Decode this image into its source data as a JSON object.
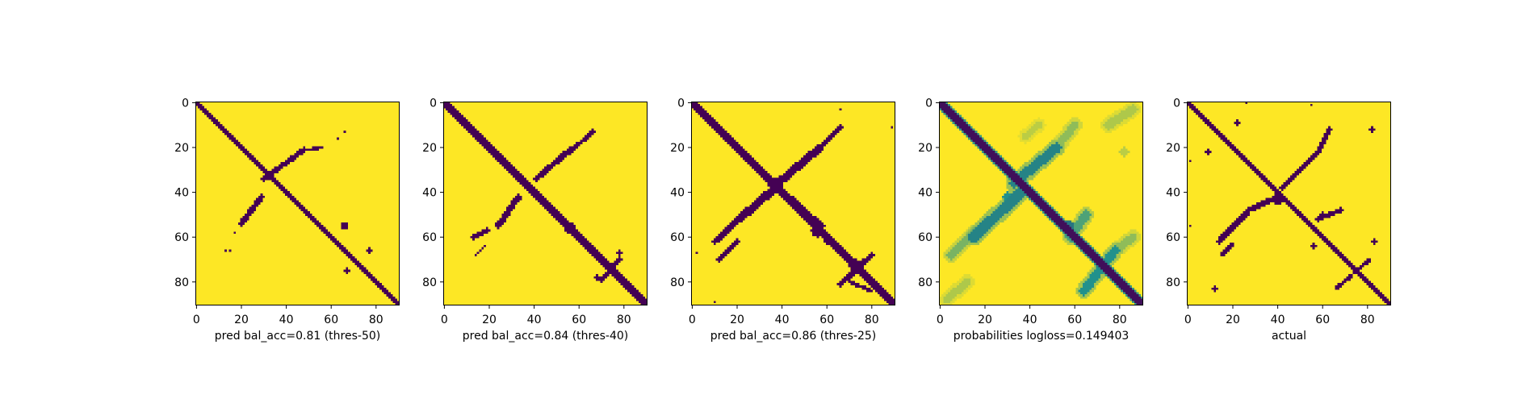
{
  "chart_data": [
    {
      "type": "heatmap",
      "matrix_size": 91,
      "colormap": "viridis",
      "colors": {
        "low": "#440154",
        "mid": "#21918c",
        "high": "#fde725"
      },
      "xlabel": "pred bal_acc=0.81 (thres-50)",
      "x_ticks": [
        0,
        20,
        40,
        60,
        80
      ],
      "y_ticks": [
        0,
        20,
        40,
        60,
        80
      ],
      "xlim": [
        0,
        91
      ],
      "ylim": [
        91,
        0
      ],
      "binary": true,
      "diagonal_width": 2.2,
      "cross_features": [
        {
          "x1": 30,
          "y1": 34,
          "x2": 48,
          "y2": 21,
          "width": 1.2
        },
        {
          "x1": 20,
          "y1": 54,
          "x2": 29,
          "y2": 42,
          "width": 1.3
        },
        {
          "x1": 50,
          "y1": 21,
          "x2": 56,
          "y2": 20,
          "width": 0.8
        }
      ],
      "blobs": [
        {
          "x": 66,
          "y": 55,
          "r": 1.5
        },
        {
          "x": 77,
          "y": 66,
          "r": 1.2
        },
        {
          "x": 67,
          "y": 75,
          "r": 1.0
        },
        {
          "x": 17,
          "y": 58,
          "r": 0.8
        },
        {
          "x": 15,
          "y": 66,
          "r": 0.8
        },
        {
          "x": 13,
          "y": 66,
          "r": 0.6
        },
        {
          "x": 63,
          "y": 16,
          "r": 0.6
        },
        {
          "x": 66,
          "y": 13,
          "r": 0.6
        }
      ]
    },
    {
      "type": "heatmap",
      "matrix_size": 91,
      "colormap": "viridis",
      "colors": {
        "low": "#440154",
        "mid": "#21918c",
        "high": "#fde725"
      },
      "xlabel": "pred bal_acc=0.84 (thres-40)",
      "x_ticks": [
        0,
        20,
        40,
        60,
        80
      ],
      "y_ticks": [
        0,
        20,
        40,
        60,
        80
      ],
      "xlim": [
        0,
        91
      ],
      "ylim": [
        91,
        0
      ],
      "binary": true,
      "diagonal_width": 2.4,
      "cross_features": [
        {
          "x1": 41,
          "y1": 34,
          "x2": 56,
          "y2": 21,
          "width": 1.3
        },
        {
          "x1": 56,
          "y1": 22,
          "x2": 66,
          "y2": 13,
          "width": 1.0
        },
        {
          "x1": 24,
          "y1": 55,
          "x2": 33,
          "y2": 42,
          "width": 1.4
        },
        {
          "x1": 13,
          "y1": 60,
          "x2": 19,
          "y2": 57,
          "width": 1.0
        },
        {
          "x1": 14,
          "y1": 68,
          "x2": 18,
          "y2": 64,
          "width": 0.7
        },
        {
          "x1": 70,
          "y1": 79,
          "x2": 78,
          "y2": 70,
          "width": 1.0
        }
      ],
      "blobs": [
        {
          "x": 56,
          "y": 56,
          "r": 2.5
        },
        {
          "x": 78,
          "y": 67,
          "r": 1.0
        },
        {
          "x": 68,
          "y": 78,
          "r": 1.2
        },
        {
          "x": 32,
          "y": 44,
          "r": 1.0
        }
      ]
    },
    {
      "type": "heatmap",
      "matrix_size": 91,
      "colormap": "viridis",
      "colors": {
        "low": "#440154",
        "mid": "#21918c",
        "high": "#fde725"
      },
      "xlabel": "pred bal_acc=0.86 (thres-25)",
      "x_ticks": [
        0,
        20,
        40,
        60,
        80
      ],
      "y_ticks": [
        0,
        20,
        40,
        60,
        80
      ],
      "xlim": [
        0,
        91
      ],
      "ylim": [
        91,
        0
      ],
      "binary": true,
      "diagonal_width": 2.6,
      "cross_features": [
        {
          "x1": 37,
          "y1": 37,
          "x2": 57,
          "y2": 20,
          "width": 1.8
        },
        {
          "x1": 57,
          "y1": 20,
          "x2": 66,
          "y2": 11,
          "width": 1.2
        },
        {
          "x1": 21,
          "y1": 52,
          "x2": 37,
          "y2": 38,
          "width": 1.8
        },
        {
          "x1": 10,
          "y1": 62,
          "x2": 21,
          "y2": 52,
          "width": 1.4
        },
        {
          "x1": 12,
          "y1": 70,
          "x2": 20,
          "y2": 62,
          "width": 1.0
        },
        {
          "x1": 38,
          "y1": 37,
          "x2": 58,
          "y2": 55,
          "width": 1.0
        },
        {
          "x1": 55,
          "y1": 52,
          "x2": 60,
          "y2": 62,
          "width": 1.3
        },
        {
          "x1": 66,
          "y1": 81,
          "x2": 80,
          "y2": 68,
          "width": 1.3
        },
        {
          "x1": 70,
          "y1": 80,
          "x2": 80,
          "y2": 84,
          "width": 0.9
        }
      ],
      "blobs": [
        {
          "x": 37,
          "y": 37,
          "r": 3.0
        },
        {
          "x": 56,
          "y": 57,
          "r": 3.0
        },
        {
          "x": 73,
          "y": 73,
          "r": 3.0
        },
        {
          "x": 66,
          "y": 3,
          "r": 0.5
        },
        {
          "x": 89,
          "y": 11,
          "r": 0.5
        },
        {
          "x": 2,
          "y": 67,
          "r": 0.5
        },
        {
          "x": 10,
          "y": 89,
          "r": 0.5
        }
      ]
    },
    {
      "type": "heatmap",
      "matrix_size": 91,
      "colormap": "viridis",
      "colors": {
        "low": "#440154",
        "mid": "#21918c",
        "high": "#fde725"
      },
      "xlabel": "probabilities logloss=0.149403",
      "x_ticks": [
        0,
        20,
        40,
        60,
        80
      ],
      "y_ticks": [
        0,
        20,
        40,
        60,
        80
      ],
      "xlim": [
        0,
        91
      ],
      "ylim": [
        91,
        0
      ],
      "binary": false,
      "diagonal_width": 2.4,
      "cross_features": [
        {
          "x1": 33,
          "y1": 36,
          "x2": 52,
          "y2": 20,
          "width": 2.2,
          "value": 0.45
        },
        {
          "x1": 52,
          "y1": 20,
          "x2": 60,
          "y2": 10,
          "width": 1.8,
          "value": 0.75
        },
        {
          "x1": 15,
          "y1": 60,
          "x2": 36,
          "y2": 40,
          "width": 2.4,
          "value": 0.45
        },
        {
          "x1": 5,
          "y1": 68,
          "x2": 15,
          "y2": 58,
          "width": 2.0,
          "value": 0.7
        },
        {
          "x1": 58,
          "y1": 60,
          "x2": 65,
          "y2": 50,
          "width": 2.0,
          "value": 0.6
        },
        {
          "x1": 64,
          "y1": 84,
          "x2": 78,
          "y2": 66,
          "width": 2.0,
          "value": 0.5
        },
        {
          "x1": 78,
          "y1": 66,
          "x2": 86,
          "y2": 60,
          "width": 1.8,
          "value": 0.75
        },
        {
          "x1": 75,
          "y1": 10,
          "x2": 86,
          "y2": 3,
          "width": 2.0,
          "value": 0.82
        },
        {
          "x1": 3,
          "y1": 88,
          "x2": 12,
          "y2": 80,
          "width": 1.8,
          "value": 0.82
        },
        {
          "x1": 38,
          "y1": 15,
          "x2": 44,
          "y2": 10,
          "width": 1.5,
          "value": 0.85
        }
      ],
      "blobs": [
        {
          "x": 57,
          "y": 55,
          "r": 2.8,
          "value": 0.4
        },
        {
          "x": 72,
          "y": 72,
          "r": 2.6,
          "value": 0.45
        },
        {
          "x": 30,
          "y": 42,
          "r": 2.0,
          "value": 0.5
        },
        {
          "x": 82,
          "y": 22,
          "r": 2.2,
          "value": 0.85
        }
      ]
    },
    {
      "type": "heatmap",
      "matrix_size": 91,
      "colormap": "viridis",
      "colors": {
        "low": "#440154",
        "mid": "#21918c",
        "high": "#fde725"
      },
      "xlabel": "actual",
      "x_ticks": [
        0,
        20,
        40,
        60,
        80
      ],
      "y_ticks": [
        0,
        20,
        40,
        60,
        80
      ],
      "xlim": [
        0,
        91
      ],
      "ylim": [
        91,
        0
      ],
      "binary": true,
      "diagonal_width": 2.2,
      "cross_features": [
        {
          "x1": 42,
          "y1": 38,
          "x2": 58,
          "y2": 22,
          "width": 1.3
        },
        {
          "x1": 58,
          "y1": 22,
          "x2": 63,
          "y2": 12,
          "width": 1.0
        },
        {
          "x1": 27,
          "y1": 48,
          "x2": 38,
          "y2": 43,
          "width": 1.3
        },
        {
          "x1": 14,
          "y1": 62,
          "x2": 27,
          "y2": 48,
          "width": 1.4
        },
        {
          "x1": 15,
          "y1": 68,
          "x2": 20,
          "y2": 63,
          "width": 0.8
        },
        {
          "x1": 58,
          "y1": 52,
          "x2": 68,
          "y2": 48,
          "width": 1.0
        },
        {
          "x1": 66,
          "y1": 83,
          "x2": 73,
          "y2": 77,
          "width": 0.9
        },
        {
          "x1": 74,
          "y1": 76,
          "x2": 81,
          "y2": 70,
          "width": 0.9
        }
      ],
      "blobs": [
        {
          "x": 40,
          "y": 43,
          "r": 2.3
        },
        {
          "x": 9,
          "y": 22,
          "r": 1.2
        },
        {
          "x": 22,
          "y": 9,
          "r": 1.2
        },
        {
          "x": 82,
          "y": 12,
          "r": 1.2
        },
        {
          "x": 83,
          "y": 62,
          "r": 1.0
        },
        {
          "x": 12,
          "y": 83,
          "r": 1.2
        },
        {
          "x": 56,
          "y": 64,
          "r": 1.0
        },
        {
          "x": 26,
          "y": 0,
          "r": 0.6
        },
        {
          "x": 55,
          "y": 1,
          "r": 0.6
        },
        {
          "x": 1,
          "y": 55,
          "r": 0.6
        },
        {
          "x": 1,
          "y": 26,
          "r": 0.5
        },
        {
          "x": 60,
          "y": 50,
          "r": 1.0
        }
      ]
    }
  ]
}
